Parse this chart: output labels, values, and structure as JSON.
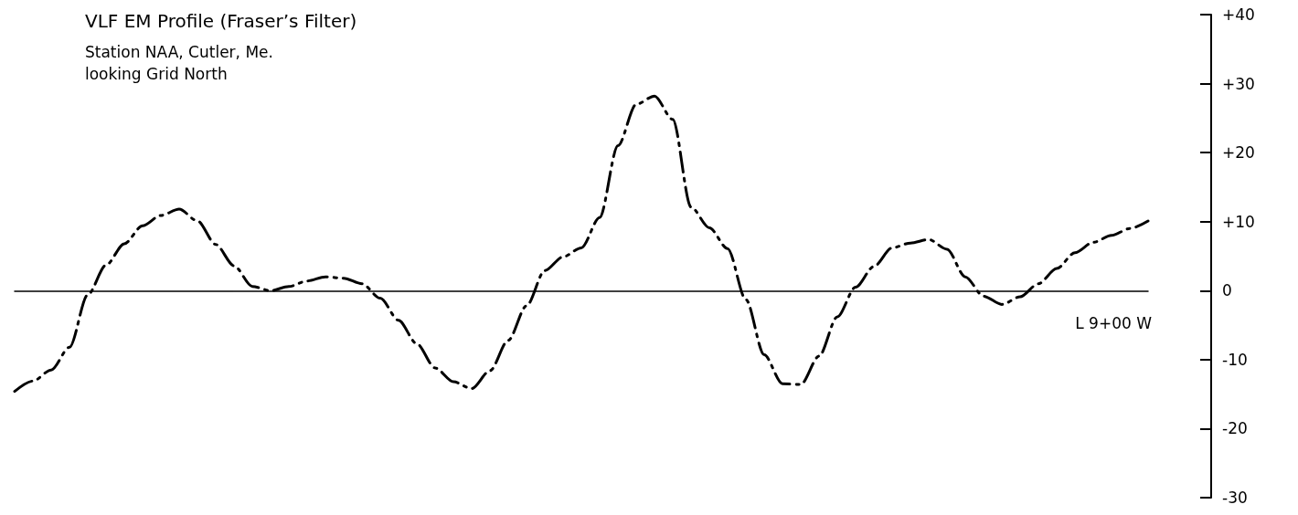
{
  "chart_data": {
    "type": "line",
    "title": "VLF EM Profile (Fraser’s Filter)",
    "subtitle": "Station NAA, Cutler, Me.\nlooking Grid North",
    "annotations": [
      "L 9+00 W"
    ],
    "categories": [
      null,
      null,
      null,
      null,
      null,
      null,
      null,
      null,
      null,
      null,
      null,
      null,
      null,
      null,
      null,
      null,
      null,
      null,
      null,
      null,
      null,
      null,
      null,
      null,
      null,
      null,
      null,
      null,
      null,
      null,
      null,
      null,
      null,
      null,
      null,
      null,
      null,
      null,
      null,
      null,
      null,
      null,
      null,
      null,
      null,
      null,
      null,
      null,
      null,
      null,
      null,
      null,
      null,
      null,
      null,
      null,
      null,
      null,
      null,
      null,
      null,
      null,
      null
    ],
    "series": [
      {
        "color": "#000000",
        "values": [
          -14.6,
          -13.1,
          -11.5,
          -8.2,
          -0.6,
          3.7,
          6.8,
          9.4,
          10.9,
          11.8,
          10.1,
          6.7,
          3.6,
          0.6,
          0,
          0.6,
          1.4,
          2.0,
          1.8,
          1.0,
          -1.1,
          -4.3,
          -7.7,
          -11.2,
          -13.2,
          -14.2,
          -11.6,
          -7.2,
          -2.2,
          2.9,
          4.9,
          6.2,
          10.6,
          21,
          27,
          28.2,
          24.8,
          12.1,
          9.1,
          6.1,
          -1.3,
          -9.3,
          -13.5,
          -13.6,
          -9.5,
          -3.8,
          0.5,
          3.5,
          6.2,
          6.9,
          7.4,
          6.0,
          2.0,
          -0.8,
          -2.0,
          -0.9,
          1.0,
          3.2,
          5.5,
          7.0,
          8.0,
          9.0,
          10.1
        ]
      }
    ],
    "ylim": [
      -30,
      40
    ],
    "yticks": [
      {
        "value": 40,
        "label": "+40"
      },
      {
        "value": 30,
        "label": "+30"
      },
      {
        "value": 20,
        "label": "+20"
      },
      {
        "value": 10,
        "label": "+10"
      },
      0,
      -10,
      -20,
      -30
    ],
    "tick_labels": "y",
    "marker": "none",
    "line_style": "dashed"
  }
}
